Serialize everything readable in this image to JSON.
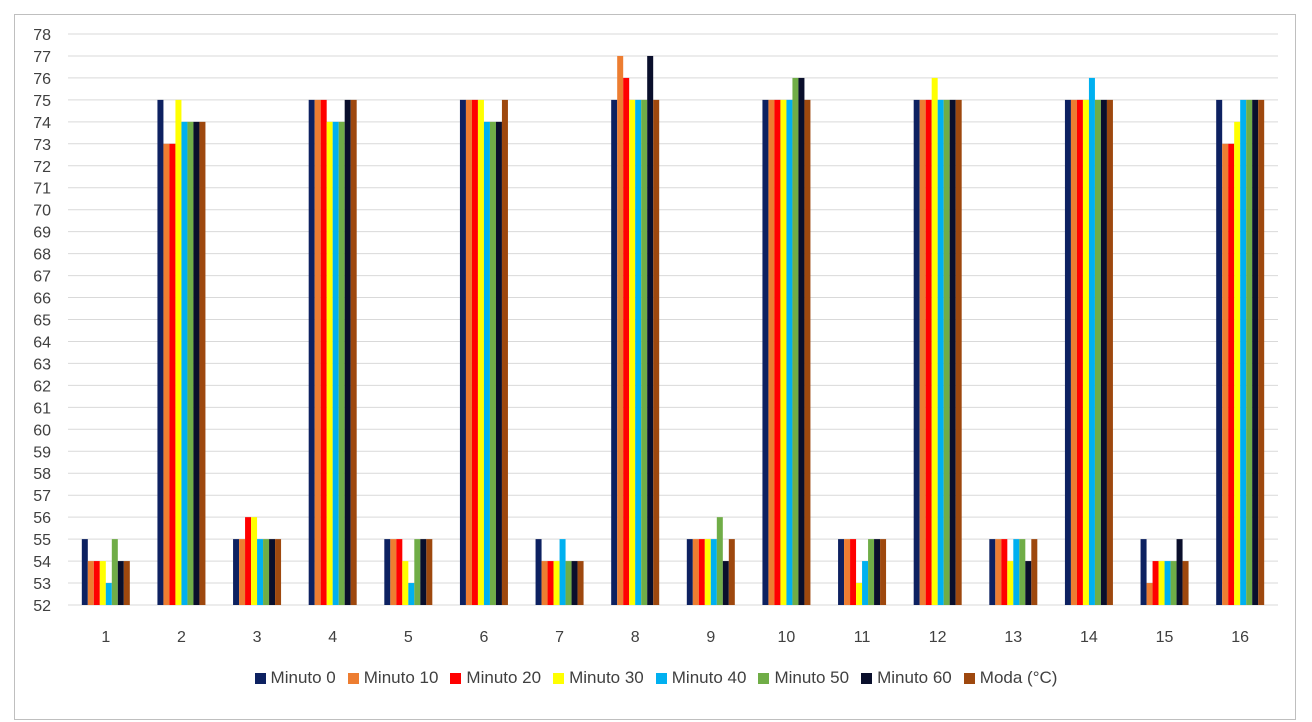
{
  "caption": "",
  "chart_data": {
    "type": "bar",
    "title": "",
    "xlabel": "",
    "ylabel": "",
    "ylim": [
      52,
      78
    ],
    "yticks": [
      52,
      53,
      54,
      55,
      56,
      57,
      58,
      59,
      60,
      61,
      62,
      63,
      64,
      65,
      66,
      67,
      68,
      69,
      70,
      71,
      72,
      73,
      74,
      75,
      76,
      77,
      78
    ],
    "grid": true,
    "legend_position": "bottom",
    "categories": [
      "1",
      "2",
      "3",
      "4",
      "5",
      "6",
      "7",
      "8",
      "9",
      "10",
      "11",
      "12",
      "13",
      "14",
      "15",
      "16"
    ],
    "series": [
      {
        "name": "Minuto 0",
        "color": "#0d2161",
        "values": [
          55,
          75,
          55,
          75,
          55,
          75,
          55,
          75,
          55,
          75,
          55,
          75,
          55,
          75,
          55,
          75
        ]
      },
      {
        "name": "Minuto 10",
        "color": "#ed7d31",
        "values": [
          54,
          73,
          55,
          75,
          55,
          75,
          54,
          77,
          55,
          75,
          55,
          75,
          55,
          75,
          53,
          73
        ]
      },
      {
        "name": "Minuto 20",
        "color": "#ff0000",
        "values": [
          54,
          73,
          56,
          75,
          55,
          75,
          54,
          76,
          55,
          75,
          55,
          75,
          55,
          75,
          54,
          73
        ]
      },
      {
        "name": "Minuto 30",
        "color": "#ffff00",
        "values": [
          54,
          75,
          56,
          74,
          54,
          75,
          54,
          75,
          55,
          75,
          53,
          76,
          54,
          75,
          54,
          74
        ]
      },
      {
        "name": "Minuto 40",
        "color": "#00b0f0",
        "values": [
          53,
          74,
          55,
          74,
          53,
          74,
          55,
          75,
          55,
          75,
          54,
          75,
          55,
          76,
          54,
          75
        ]
      },
      {
        "name": "Minuto 50",
        "color": "#70ad47",
        "values": [
          55,
          74,
          55,
          74,
          55,
          74,
          54,
          75,
          56,
          76,
          55,
          75,
          55,
          75,
          54,
          75
        ]
      },
      {
        "name": "Minuto 60",
        "color": "#0a0f2c",
        "values": [
          54,
          74,
          55,
          75,
          55,
          74,
          54,
          77,
          54,
          76,
          55,
          75,
          54,
          75,
          55,
          75
        ]
      },
      {
        "name": "Moda (°C)",
        "color": "#9e480e",
        "values": [
          54,
          74,
          55,
          75,
          55,
          75,
          54,
          75,
          55,
          75,
          55,
          75,
          55,
          75,
          54,
          75
        ]
      }
    ]
  }
}
